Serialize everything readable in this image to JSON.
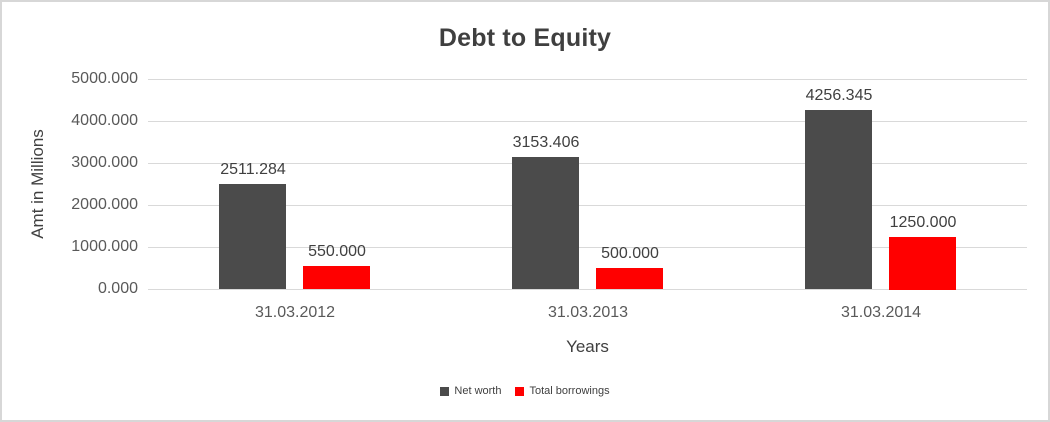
{
  "chart_data": {
    "type": "bar",
    "title": "Debt to Equity",
    "xlabel": "Years",
    "ylabel": "Amt in Millions",
    "categories": [
      "31.03.2012",
      "31.03.2013",
      "31.03.2014"
    ],
    "series": [
      {
        "name": "Net worth",
        "color": "#4b4b4b",
        "values": [
          2511.284,
          3153.406,
          4256.345
        ],
        "labels": [
          "2511.284",
          "3153.406",
          "4256.345"
        ]
      },
      {
        "name": "Total borrowings",
        "color": "#ff0000",
        "values": [
          550.0,
          500.0,
          1250.0
        ],
        "labels": [
          "550.000",
          "500.000",
          "1250.000"
        ]
      }
    ],
    "ylim": [
      0,
      5000
    ],
    "yticks": [
      0,
      1000,
      2000,
      3000,
      4000,
      5000
    ],
    "ytick_labels": [
      "0.000",
      "1000.000",
      "2000.000",
      "3000.000",
      "4000.000",
      "5000.000"
    ],
    "grid": true,
    "legend_position": "bottom",
    "colors": {
      "gridline": "#d9d9d9",
      "axis_text": "#595959",
      "label_text": "#404040",
      "border": "#d7d7d7"
    }
  }
}
